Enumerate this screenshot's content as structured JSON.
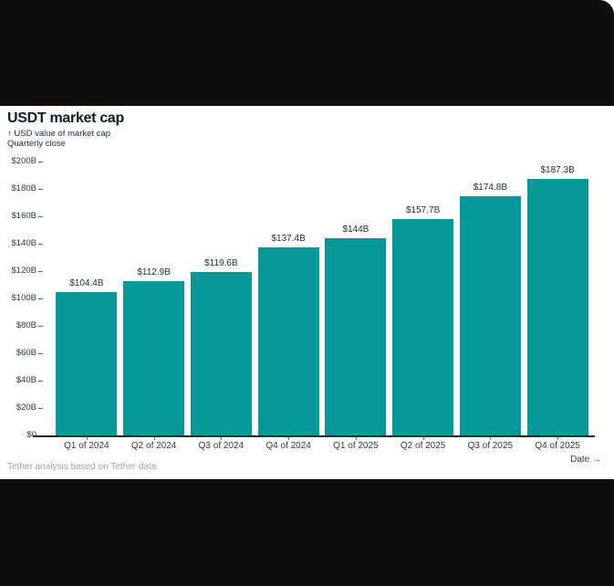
{
  "header": {
    "title": "USDT market cap",
    "subtitle_line1": "↑ USD value of market cap",
    "subtitle_line2": "Quarterly close"
  },
  "footer": {
    "source": "Tether analysis based on Tether data",
    "xaxis_label": "Date →"
  },
  "colors": {
    "bar": "#069799",
    "background": "#ffffff",
    "letterbox_band": "#0d0d0d",
    "title_text": "#0b1c28",
    "axis_text": "#2e3a44",
    "muted_text": "#99a3ac"
  },
  "chart_data": {
    "type": "bar",
    "title": "USDT market cap",
    "subtitle": "↑ USD value of market cap — Quarterly close",
    "xlabel": "Date",
    "ylabel": "USD value of market cap",
    "categories": [
      "Q1 of 2024",
      "Q2 of 2024",
      "Q3 of 2024",
      "Q4 of 2024",
      "Q1 of 2025",
      "Q2 of 2025",
      "Q3 of 2025",
      "Q4 of 2025"
    ],
    "values": [
      104.4,
      112.9,
      119.6,
      137.4,
      144,
      157.7,
      174.8,
      187.3
    ],
    "value_labels": [
      "$104.4B",
      "$112.9B",
      "$119.6B",
      "$137.4B",
      "$144B",
      "$157.7B",
      "$174.8B",
      "$187.3B"
    ],
    "ylim": [
      0,
      200
    ],
    "y_ticks": [
      {
        "value": 200,
        "label": "$200B"
      },
      {
        "value": 180,
        "label": "$180B"
      },
      {
        "value": 160,
        "label": "$160B"
      },
      {
        "value": 140,
        "label": "$140B"
      },
      {
        "value": 120,
        "label": "$120B"
      },
      {
        "value": 100,
        "label": "$100B"
      },
      {
        "value": 80,
        "label": "$80B"
      },
      {
        "value": 60,
        "label": "$60B"
      },
      {
        "value": 40,
        "label": "$40B"
      },
      {
        "value": 20,
        "label": "$20B"
      },
      {
        "value": 0,
        "label": "$0"
      }
    ],
    "grid": false,
    "legend": false,
    "source": "Tether analysis based on Tether data"
  }
}
